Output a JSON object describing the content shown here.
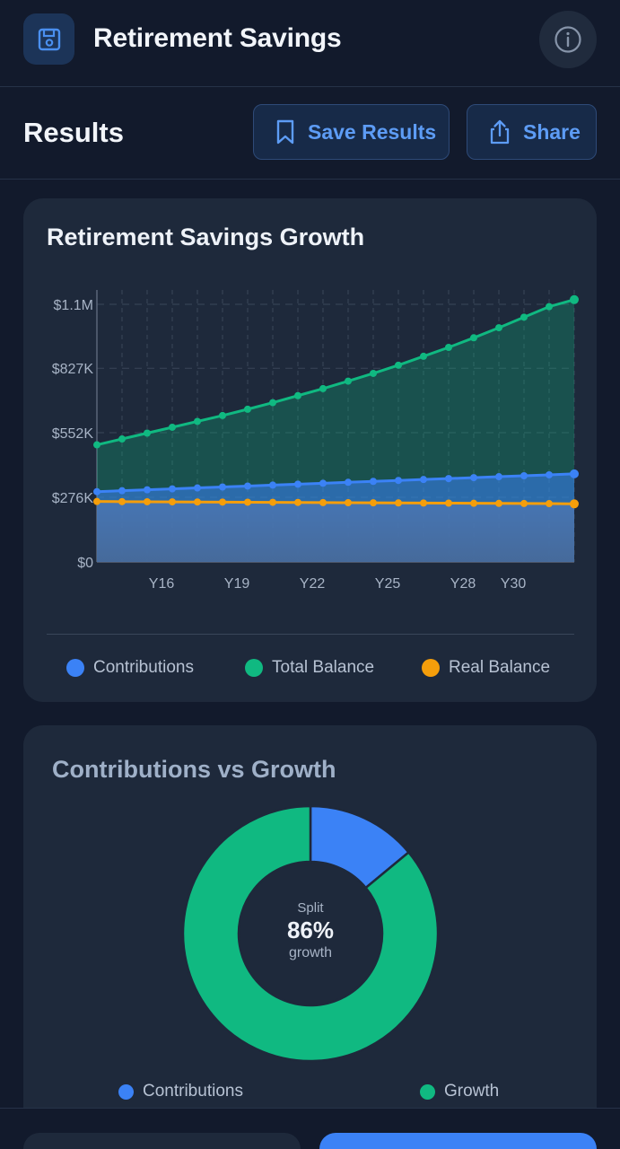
{
  "header": {
    "title": "Retirement Savings",
    "app_icon": "floppy-disk-icon",
    "info_icon": "info-icon"
  },
  "results": {
    "title": "Results",
    "save_label": "Save Results",
    "share_label": "Share"
  },
  "colors": {
    "contributions": "#3b82f6",
    "total_balance": "#10b981",
    "real_balance": "#f59e0b",
    "accent": "#5d9cf5"
  },
  "growth_card": {
    "title": "Retirement Savings Growth",
    "legend": [
      "Contributions",
      "Total Balance",
      "Real Balance"
    ]
  },
  "split_card": {
    "title": "Contributions vs Growth",
    "center_label": "Split",
    "center_value": "86%",
    "center_sub": "growth",
    "legend": [
      "Contributions",
      "Growth"
    ]
  },
  "chart_data": [
    {
      "type": "area",
      "title": "Retirement Savings Growth",
      "x": [
        1,
        2,
        3,
        4,
        5,
        6,
        7,
        8,
        9,
        10,
        11,
        12,
        13,
        14,
        15,
        16,
        17,
        18,
        19,
        20
      ],
      "x_tick_labels": [
        "Y16",
        "Y19",
        "Y22",
        "Y25",
        "Y28",
        "Y30"
      ],
      "x_tick_positions": [
        3,
        6,
        9,
        12,
        15,
        17
      ],
      "y_tick_labels": [
        "$0",
        "$276K",
        "$552K",
        "$827K",
        "$1.1M"
      ],
      "y_tick_values": [
        0,
        276000,
        552000,
        827000,
        1100000
      ],
      "ylim": [
        0,
        1100000
      ],
      "series": [
        {
          "name": "Total Balance",
          "values": [
            500000,
            525000,
            550000,
            575000,
            600000,
            625000,
            652000,
            680000,
            710000,
            740000,
            772000,
            805000,
            840000,
            878000,
            916000,
            957000,
            1000000,
            1045000,
            1090000,
            1120000
          ]
        },
        {
          "name": "Contributions",
          "values": [
            300000,
            304000,
            308000,
            312000,
            316000,
            320000,
            324000,
            328000,
            332000,
            336000,
            340000,
            344000,
            348000,
            352000,
            356000,
            360000,
            364000,
            368000,
            372000,
            376000
          ]
        },
        {
          "name": "Real Balance",
          "values": [
            258000,
            257500,
            257000,
            256500,
            256000,
            255500,
            255000,
            254500,
            254000,
            253500,
            253000,
            252500,
            252000,
            251500,
            251000,
            250500,
            250000,
            249500,
            249000,
            248000
          ]
        }
      ]
    },
    {
      "type": "pie",
      "title": "Contributions vs Growth",
      "categories": [
        "Contributions",
        "Growth"
      ],
      "values": [
        14,
        86
      ]
    }
  ]
}
